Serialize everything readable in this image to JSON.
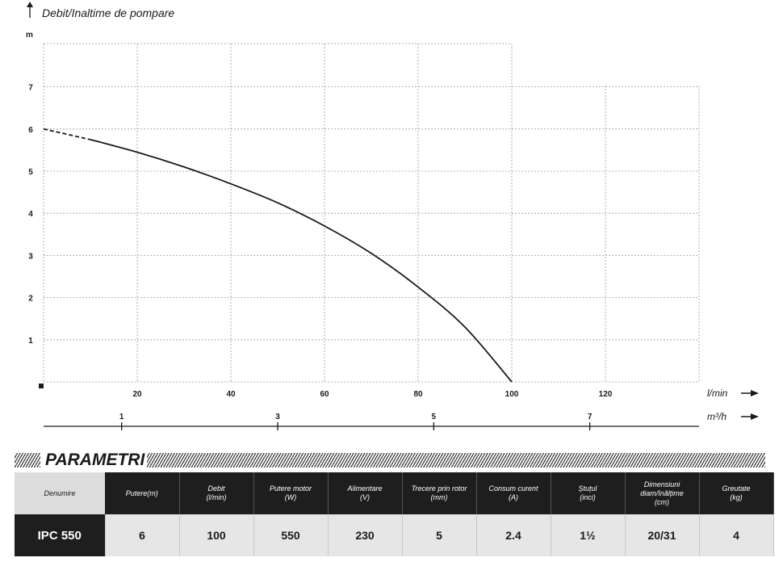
{
  "chart_data": {
    "type": "line",
    "title": "Debit/Inaltime de pompare",
    "ylabel": "m",
    "xlabel": "l/min",
    "secondary_xlabel": "m³/h",
    "xlim": [
      0,
      140
    ],
    "ylim": [
      0,
      8
    ],
    "x_ticks": [
      20,
      40,
      60,
      80,
      100,
      120
    ],
    "y_ticks": [
      1,
      2,
      3,
      4,
      5,
      6,
      7
    ],
    "secondary_x_ticks": [
      1,
      3,
      5,
      7
    ],
    "grid": true,
    "series": [
      {
        "x": [
          0,
          10,
          20,
          30,
          40,
          50,
          60,
          70,
          80,
          90,
          100
        ],
        "y": [
          6.0,
          5.75,
          5.45,
          5.1,
          4.7,
          4.25,
          3.7,
          3.05,
          2.25,
          1.3,
          0.0
        ],
        "dashed_until_x": 10
      }
    ]
  },
  "parameters": {
    "title": "PARAMETRI",
    "headers": [
      [
        "Denumire"
      ],
      [
        "Putere(m)"
      ],
      [
        "Debit",
        "(l/min)"
      ],
      [
        "Putere motor",
        "(W)"
      ],
      [
        "Alimentare",
        "(V)"
      ],
      [
        "Trecere prin rotor",
        "(mm)"
      ],
      [
        "Consum curent",
        "(A)"
      ],
      [
        "Ștuțul",
        "(inci)"
      ],
      [
        "Dimensiuni",
        "diam/înălțime",
        "(cm)"
      ],
      [
        "Greutate",
        "(kg)"
      ]
    ],
    "values": [
      "IPC 550",
      "6",
      "100",
      "550",
      "230",
      "5",
      "2.4",
      "1½",
      "20/31",
      "4"
    ]
  }
}
